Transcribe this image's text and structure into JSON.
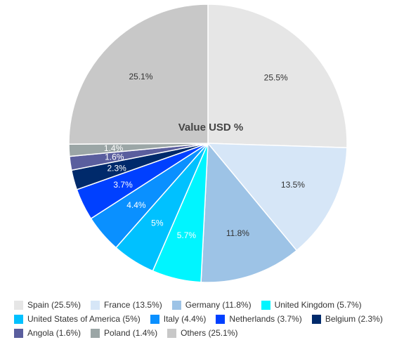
{
  "chart_data": {
    "type": "pie",
    "title": "Value USD %",
    "slices": [
      {
        "name": "Spain",
        "value": 25.5,
        "label": "25.5%",
        "legend": "Spain (25.5%)",
        "color": "#e6e6e6",
        "label_color": "#333333"
      },
      {
        "name": "France",
        "value": 13.5,
        "label": "13.5%",
        "legend": "France (13.5%)",
        "color": "#d6e6f7",
        "label_color": "#333333"
      },
      {
        "name": "Germany",
        "value": 11.8,
        "label": "11.8%",
        "legend": "Germany (11.8%)",
        "color": "#9dc3e6",
        "label_color": "#333333"
      },
      {
        "name": "United Kingdom",
        "value": 5.7,
        "label": "5.7%",
        "legend": "United Kingdom (5.7%)",
        "color": "#00f5ff",
        "label_color": "#ffffff"
      },
      {
        "name": "United States of America",
        "value": 5,
        "label": "5%",
        "legend": "United States of America (5%)",
        "color": "#00c1ff",
        "label_color": "#ffffff"
      },
      {
        "name": "Italy",
        "value": 4.4,
        "label": "4.4%",
        "legend": "Italy (4.4%)",
        "color": "#0a90ff",
        "label_color": "#ffffff"
      },
      {
        "name": "Netherlands",
        "value": 3.7,
        "label": "3.7%",
        "legend": "Netherlands (3.7%)",
        "color": "#0040ff",
        "label_color": "#ffffff"
      },
      {
        "name": "Belgium",
        "value": 2.3,
        "label": "2.3%",
        "legend": "Belgium (2.3%)",
        "color": "#002a6b",
        "label_color": "#ffffff"
      },
      {
        "name": "Angola",
        "value": 1.6,
        "label": "1.6%",
        "legend": "Angola (1.6%)",
        "color": "#5a5e9e",
        "label_color": "#ffffff"
      },
      {
        "name": "Poland",
        "value": 1.4,
        "label": "1.4%",
        "legend": "Poland (1.4%)",
        "color": "#9ba6a6",
        "label_color": "#ffffff"
      },
      {
        "name": "Others",
        "value": 25.1,
        "label": "25.1%",
        "legend": "Others (25.1%)",
        "color": "#c8c8c8",
        "label_color": "#333333"
      }
    ],
    "legend_rows": [
      [
        0,
        1,
        2,
        3
      ],
      [
        4,
        5,
        6,
        7
      ],
      [
        8,
        9,
        10
      ]
    ],
    "legend_position": "bottom"
  }
}
